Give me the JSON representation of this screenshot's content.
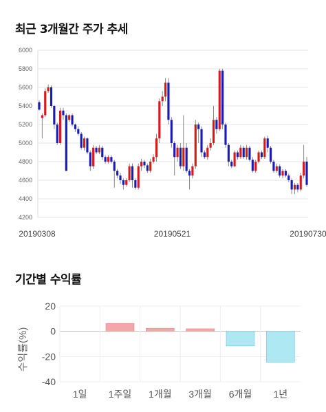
{
  "section1_title": "최근 3개월간 주가 추세",
  "section2_title": "기간별 수익률",
  "colors": {
    "up": "#d7191c",
    "down": "#1a1ab8",
    "wick": "#888888",
    "grid": "#e6e6e6",
    "positive_bar": "#f4a7aa",
    "negative_bar": "#aee8f2"
  },
  "chart_data": [
    {
      "type": "candlestick",
      "ylim": [
        4200,
        6000
      ],
      "y_ticks": [
        "6000",
        "5800",
        "5600",
        "5400",
        "5200",
        "5000",
        "4800",
        "4600",
        "4400",
        "4200"
      ],
      "x_ticks": [
        "20190308",
        "20190521",
        "20190730"
      ],
      "grid": true,
      "candles": [
        [
          5440,
          5360,
          5460,
          5350
        ],
        [
          5270,
          5300,
          5320,
          5050
        ],
        [
          5300,
          5560,
          5590,
          5280
        ],
        [
          5560,
          5600,
          5630,
          5540
        ],
        [
          5600,
          5400,
          5620,
          5380
        ],
        [
          5400,
          5200,
          5410,
          5150
        ],
        [
          5200,
          5000,
          5220,
          4980
        ],
        [
          5000,
          5350,
          5380,
          4980
        ],
        [
          5350,
          5300,
          5380,
          5250
        ],
        [
          5300,
          4700,
          5320,
          4700
        ],
        [
          5250,
          5300,
          5310,
          5230
        ],
        [
          5300,
          5200,
          5320,
          5180
        ],
        [
          5200,
          5150,
          5210,
          5120
        ],
        [
          5150,
          5100,
          5180,
          5080
        ],
        [
          5100,
          4950,
          5120,
          4930
        ],
        [
          4950,
          5050,
          5070,
          4920
        ],
        [
          5050,
          4900,
          5060,
          4880
        ],
        [
          4900,
          4750,
          4920,
          4700
        ],
        [
          4750,
          4950,
          4980,
          4720
        ],
        [
          4950,
          4900,
          4970,
          4880
        ],
        [
          4900,
          4950,
          4980,
          4880
        ],
        [
          4950,
          4850,
          4970,
          4820
        ],
        [
          4850,
          4800,
          4870,
          4780
        ],
        [
          4800,
          4850,
          4870,
          4780
        ],
        [
          4850,
          4800,
          4870,
          4780
        ],
        [
          4800,
          4700,
          4820,
          4520
        ],
        [
          4700,
          4650,
          4720,
          4620
        ],
        [
          4650,
          4600,
          4680,
          4560
        ],
        [
          4600,
          4550,
          4620,
          4500
        ],
        [
          4550,
          4600,
          4620,
          4530
        ],
        [
          4600,
          4750,
          4780,
          4580
        ],
        [
          4750,
          4600,
          4780,
          4520
        ],
        [
          4600,
          4520,
          4620,
          4500
        ],
        [
          4520,
          4750,
          4780,
          4500
        ],
        [
          4750,
          4800,
          4830,
          4700
        ],
        [
          4800,
          4760,
          4820,
          4730
        ],
        [
          4760,
          4700,
          4780,
          4680
        ],
        [
          4700,
          4800,
          4830,
          4680
        ],
        [
          4800,
          4850,
          4880,
          4780
        ],
        [
          4850,
          5050,
          5100,
          4800
        ],
        [
          5050,
          5450,
          5480,
          5000
        ],
        [
          5450,
          5500,
          5560,
          5400
        ],
        [
          5500,
          5650,
          5700,
          5450
        ],
        [
          5650,
          5250,
          5700,
          5200
        ],
        [
          5250,
          5000,
          5280,
          4950
        ],
        [
          5000,
          4850,
          5020,
          4650
        ],
        [
          4850,
          4950,
          4980,
          4800
        ],
        [
          4950,
          4750,
          5000,
          4720
        ],
        [
          4750,
          4950,
          5300,
          4700
        ],
        [
          4950,
          4700,
          5000,
          4680
        ],
        [
          4700,
          4650,
          4720,
          4500
        ],
        [
          4650,
          4750,
          4780,
          4620
        ],
        [
          4750,
          5200,
          5250,
          4720
        ],
        [
          5200,
          5150,
          5220,
          5000
        ],
        [
          5150,
          4900,
          5180,
          4850
        ],
        [
          4900,
          4850,
          4920,
          4830
        ],
        [
          4850,
          4950,
          4980,
          4820
        ],
        [
          4950,
          5000,
          5050,
          4920
        ],
        [
          5000,
          5250,
          5400,
          4980
        ],
        [
          5250,
          5150,
          5280,
          5100
        ],
        [
          5150,
          5780,
          5800,
          5130
        ],
        [
          5780,
          5200,
          5800,
          5150
        ],
        [
          5200,
          4980,
          5220,
          4950
        ],
        [
          4980,
          4800,
          5000,
          4750
        ],
        [
          4800,
          4750,
          4820,
          4730
        ],
        [
          4750,
          4900,
          4920,
          4740
        ],
        [
          4900,
          4850,
          4920,
          4820
        ],
        [
          4850,
          4950,
          4980,
          4830
        ],
        [
          4950,
          4850,
          4970,
          4830
        ],
        [
          4850,
          4950,
          4980,
          4820
        ],
        [
          4950,
          4820,
          4970,
          4800
        ],
        [
          4820,
          4700,
          4850,
          4680
        ],
        [
          4700,
          4800,
          4820,
          4680
        ],
        [
          4800,
          4900,
          4920,
          4780
        ],
        [
          4900,
          4850,
          4920,
          4830
        ],
        [
          4850,
          5050,
          5070,
          4830
        ],
        [
          5050,
          4950,
          5080,
          4900
        ],
        [
          4950,
          4800,
          4970,
          4780
        ],
        [
          4800,
          4700,
          4820,
          4680
        ],
        [
          4700,
          4750,
          4780,
          4680
        ],
        [
          4750,
          4650,
          4770,
          4630
        ],
        [
          4650,
          4700,
          4720,
          4620
        ],
        [
          4700,
          4650,
          4720,
          4630
        ],
        [
          4650,
          4600,
          4670,
          4580
        ],
        [
          4600,
          4500,
          4620,
          4450
        ],
        [
          4500,
          4550,
          4570,
          4450
        ],
        [
          4550,
          4500,
          4570,
          4470
        ],
        [
          4500,
          4650,
          4680,
          4480
        ],
        [
          4650,
          4800,
          4980,
          4620
        ],
        [
          4800,
          4550,
          4850,
          4530
        ]
      ]
    },
    {
      "type": "bar",
      "ylabel": "수익률(%)",
      "ylim": [
        -40,
        20
      ],
      "y_ticks": [
        "20",
        "0",
        "-20",
        "-40"
      ],
      "categories": [
        "1일",
        "1주일",
        "1개월",
        "3개월",
        "6개월",
        "1년"
      ],
      "values": [
        0,
        6.2,
        2.4,
        2.0,
        -11.5,
        -24.5
      ],
      "grid": true
    }
  ]
}
